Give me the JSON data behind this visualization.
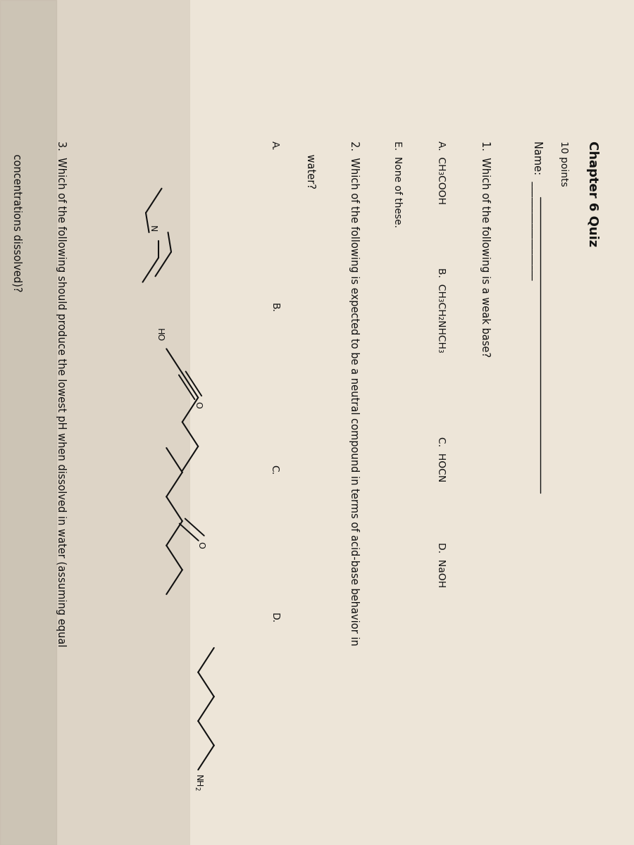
{
  "bg_color": "#ddd5c5",
  "paper_color": "#e8e0d4",
  "text_color": "#111111",
  "title": "Chapter 6 Quiz",
  "points": "10 points",
  "name_label": "Name:",
  "q1": "1.  Which of the following is a weak base?",
  "q1_A": "A.  CH₃COOH",
  "q1_B": "B.  CH₃CH₂NHCH₃",
  "q1_C": "C.  HOCN",
  "q1_D": "D.  NaOH",
  "q1_E": "E.  None of these.",
  "q2_line1": "2.  Which of the following is expected to be a neutral compound in terms of acid-base behavior in",
  "q2_line2": "    water?",
  "q2_A": "A.",
  "q2_B": "B.",
  "q2_C": "C.",
  "q2_D": "D.",
  "q3_line1": "3.  Which of the following should produce the lowest pH when dissolved in water (assuming equal",
  "q3_line2": "    concentrations dissolved)?"
}
